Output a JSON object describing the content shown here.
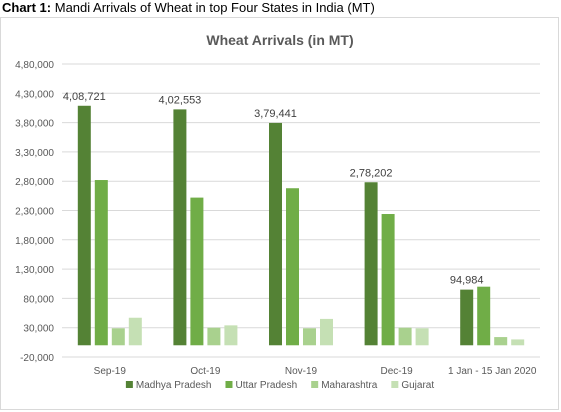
{
  "caption": {
    "prefix": "Chart 1:",
    "text": "Mandi Arrivals of Wheat in top Four States in India (MT)"
  },
  "chart_data": {
    "type": "bar",
    "title": "Wheat Arrivals (in MT)",
    "xlabel": "",
    "ylabel": "",
    "categories": [
      "Sep-19",
      "Oct-19",
      "Nov-19",
      "Dec-19",
      "1 Jan - 15 Jan 2020"
    ],
    "series": [
      {
        "name": "Madhya Pradesh",
        "color": "#548235",
        "values": [
          408721,
          402553,
          379441,
          278202,
          94984
        ]
      },
      {
        "name": "Uttar Pradesh",
        "color": "#70ad47",
        "values": [
          282000,
          252000,
          268000,
          224000,
          100000
        ]
      },
      {
        "name": "Maharashtra",
        "color": "#a9d18e",
        "values": [
          29000,
          30000,
          29000,
          30000,
          14000
        ]
      },
      {
        "name": "Gujarat",
        "color": "#c5e0b4",
        "values": [
          47000,
          34000,
          45000,
          29000,
          10000
        ]
      }
    ],
    "data_labels": [
      "4,08,721",
      "4,02,553",
      "3,79,441",
      "2,78,202",
      "94,984"
    ],
    "y_ticks": [
      -20000,
      30000,
      80000,
      130000,
      180000,
      230000,
      280000,
      330000,
      380000,
      430000,
      480000
    ],
    "y_tick_labels": [
      "-20,000",
      "30,000",
      "80,000",
      "1,30,000",
      "1,80,000",
      "2,30,000",
      "2,80,000",
      "3,30,000",
      "3,80,000",
      "4,30,000",
      "4,80,000"
    ],
    "ylim": [
      -20000,
      480000
    ],
    "grid": true,
    "legend_position": "bottom"
  }
}
